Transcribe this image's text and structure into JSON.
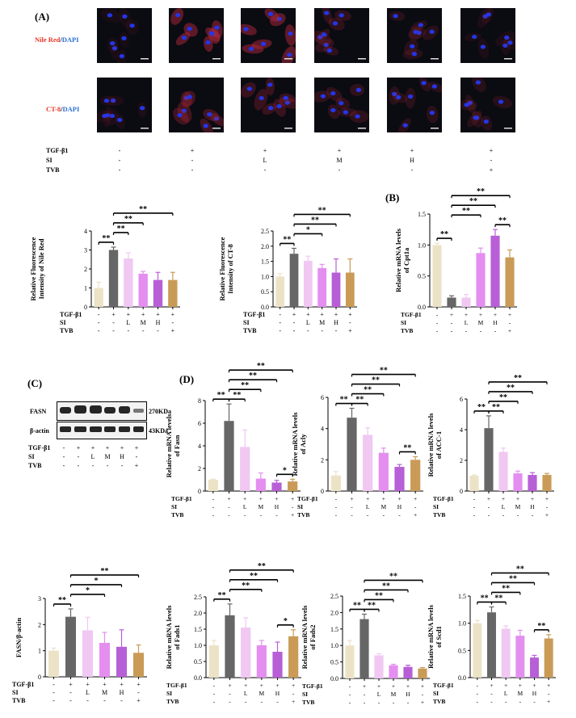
{
  "panels": {
    "A": "(A)",
    "B": "(B)",
    "C": "(C)",
    "D": "(D)"
  },
  "colors": {
    "ctrl": "#ece3c7",
    "tgf": "#666666",
    "L": "#f0c8f2",
    "M": "#e48ef0",
    "H": "#b75fd6",
    "TVB": "#c99b57",
    "nile": "#e8392a",
    "dapi": "#2b6fd6"
  },
  "microscopy": {
    "row1_label_a": "Nile Red",
    "row1_label_sep": "/",
    "row1_label_b": "DAPI",
    "row2_label_a": "CT-8",
    "row2_label_sep": "/",
    "row2_label_b": "DAPI"
  },
  "treatment_table": {
    "rows": [
      {
        "label": "TGF-β1",
        "values": [
          "-",
          "+",
          "+",
          "+",
          "+",
          "+"
        ]
      },
      {
        "label": "SI",
        "values": [
          "-",
          "-",
          "L",
          "M",
          "H",
          "-"
        ]
      },
      {
        "label": "TVB",
        "values": [
          "-",
          "-",
          "-",
          "-",
          "-",
          "+"
        ]
      }
    ]
  },
  "blot": {
    "labels": [
      "FASN",
      "β-actin"
    ],
    "sizes": [
      "270KDa",
      "43KDa"
    ]
  },
  "chart_data": [
    {
      "id": "nile",
      "type": "bar",
      "ylabel_l1": "Relative Fluorescence",
      "ylabel_l2": "Intensity of Nile Red",
      "ylim": [
        0,
        4
      ],
      "yticks": [
        "0",
        "1",
        "2",
        "3",
        "4"
      ],
      "values": [
        1.0,
        3.0,
        2.55,
        1.75,
        1.42,
        1.42
      ],
      "errors": [
        0.3,
        0.15,
        0.3,
        0.12,
        0.4,
        0.4
      ],
      "sig": [
        {
          "from": 0,
          "to": 1,
          "label": "**",
          "level": 1
        },
        {
          "from": 1,
          "to": 2,
          "label": "**",
          "level": 2
        },
        {
          "from": 1,
          "to": 3,
          "label": "**",
          "level": 3
        },
        {
          "from": 1,
          "to": 5,
          "label": "**",
          "level": 4
        }
      ]
    },
    {
      "id": "ct8",
      "type": "bar",
      "ylabel_l1": "Relative Fluorescence",
      "ylabel_l2": "Intensity of CT-8",
      "ylim": [
        0,
        2.5
      ],
      "yticks": [
        "0.0",
        "0.5",
        "1.0",
        "1.5",
        "2.0",
        "2.5"
      ],
      "values": [
        1.0,
        1.75,
        1.52,
        1.28,
        1.13,
        1.13
      ],
      "errors": [
        0.1,
        0.18,
        0.15,
        0.12,
        0.45,
        0.45
      ],
      "sig": [
        {
          "from": 0,
          "to": 1,
          "label": "**",
          "level": 1
        },
        {
          "from": 1,
          "to": 3,
          "label": "*",
          "level": 2
        },
        {
          "from": 1,
          "to": 4,
          "label": "**",
          "level": 3
        },
        {
          "from": 1,
          "to": 5,
          "label": "**",
          "level": 4
        }
      ]
    },
    {
      "id": "cpt1a",
      "type": "bar",
      "ylabel_l1": "Relative mRNA levels",
      "ylabel_l2": "of Cpt1a",
      "ylim": [
        0,
        1.5
      ],
      "yticks": [
        "0.0",
        "0.5",
        "1.0",
        "1.5"
      ],
      "values": [
        1.0,
        0.15,
        0.15,
        0.87,
        1.15,
        0.8
      ],
      "errors": [
        0.03,
        0.03,
        0.05,
        0.08,
        0.1,
        0.12
      ],
      "sig": [
        {
          "from": 0,
          "to": 1,
          "label": "**",
          "level": 1
        },
        {
          "from": 4,
          "to": 5,
          "label": "**",
          "level": 1
        },
        {
          "from": 1,
          "to": 3,
          "label": "**",
          "level": 2
        },
        {
          "from": 1,
          "to": 4,
          "label": "**",
          "level": 3
        },
        {
          "from": 1,
          "to": 5,
          "label": "**",
          "level": 4
        }
      ]
    },
    {
      "id": "fasn_blot",
      "type": "bar",
      "ylabel_l1": "",
      "ylabel_l2": "FASN/β-actin",
      "ylim": [
        0,
        3
      ],
      "yticks": [
        "0",
        "1",
        "2",
        "3"
      ],
      "values": [
        1.0,
        2.3,
        1.78,
        1.3,
        1.15,
        0.92
      ],
      "errors": [
        0.1,
        0.3,
        0.5,
        0.4,
        0.65,
        0.3
      ],
      "sig": [
        {
          "from": 0,
          "to": 1,
          "label": "**",
          "level": 1
        },
        {
          "from": 1,
          "to": 3,
          "label": "*",
          "level": 2
        },
        {
          "from": 1,
          "to": 4,
          "label": "*",
          "level": 3
        },
        {
          "from": 1,
          "to": 5,
          "label": "**",
          "level": 4
        }
      ]
    },
    {
      "id": "fasn",
      "type": "bar",
      "ylabel_l1": "Relative mRNA levels",
      "ylabel_l2": "of Fasn",
      "ylim": [
        0,
        8
      ],
      "yticks": [
        "0",
        "2",
        "4",
        "6",
        "8"
      ],
      "values": [
        1.0,
        6.2,
        3.9,
        1.1,
        0.75,
        0.85
      ],
      "errors": [
        0.05,
        1.5,
        1.5,
        0.5,
        0.2,
        0.2
      ],
      "sig": [
        {
          "from": 0,
          "to": 1,
          "label": "**",
          "level": 1
        },
        {
          "from": 1,
          "to": 2,
          "label": "**",
          "level": 1
        },
        {
          "from": 4,
          "to": 5,
          "label": "*",
          "level": 1
        },
        {
          "from": 1,
          "to": 3,
          "label": "**",
          "level": 2
        },
        {
          "from": 1,
          "to": 4,
          "label": "**",
          "level": 3
        },
        {
          "from": 1,
          "to": 5,
          "label": "**",
          "level": 4
        }
      ]
    },
    {
      "id": "acly",
      "type": "bar",
      "ylabel_l1": "Relative mRNA levels",
      "ylabel_l2": "of Acly",
      "ylim": [
        0,
        6
      ],
      "yticks": [
        "0",
        "2",
        "4",
        "6"
      ],
      "values": [
        1.0,
        4.7,
        3.6,
        2.45,
        1.55,
        2.0
      ],
      "errors": [
        0.25,
        0.6,
        0.45,
        0.3,
        0.15,
        0.2
      ],
      "sig": [
        {
          "from": 0,
          "to": 1,
          "label": "**",
          "level": 1
        },
        {
          "from": 1,
          "to": 2,
          "label": "**",
          "level": 1
        },
        {
          "from": 4,
          "to": 5,
          "label": "**",
          "level": 1
        },
        {
          "from": 1,
          "to": 3,
          "label": "**",
          "level": 2
        },
        {
          "from": 1,
          "to": 4,
          "label": "**",
          "level": 3
        },
        {
          "from": 1,
          "to": 5,
          "label": "**",
          "level": 4
        }
      ]
    },
    {
      "id": "acc1",
      "type": "bar",
      "ylabel_l1": "Relative mRNA levels",
      "ylabel_l2": "of ACC-1",
      "ylim": [
        0,
        6
      ],
      "yticks": [
        "0",
        "2",
        "4",
        "6"
      ],
      "values": [
        1.0,
        4.1,
        2.55,
        1.15,
        1.05,
        1.05
      ],
      "errors": [
        0.05,
        0.8,
        0.25,
        0.15,
        0.15,
        0.1
      ],
      "sig": [
        {
          "from": 0,
          "to": 1,
          "label": "**",
          "level": 1
        },
        {
          "from": 1,
          "to": 2,
          "label": "**",
          "level": 1
        },
        {
          "from": 1,
          "to": 3,
          "label": "**",
          "level": 2
        },
        {
          "from": 1,
          "to": 4,
          "label": "**",
          "level": 3
        },
        {
          "from": 1,
          "to": 5,
          "label": "**",
          "level": 4
        }
      ]
    },
    {
      "id": "fads1",
      "type": "bar",
      "ylabel_l1": "Relative mRNA levels",
      "ylabel_l2": "of Fads1",
      "ylim": [
        0,
        2.5
      ],
      "yticks": [
        "0.0",
        "0.5",
        "1.0",
        "1.5",
        "2.0",
        "2.5"
      ],
      "values": [
        1.0,
        1.93,
        1.55,
        1.0,
        0.8,
        1.28
      ],
      "errors": [
        0.15,
        0.35,
        0.3,
        0.15,
        0.3,
        0.2
      ],
      "sig": [
        {
          "from": 0,
          "to": 1,
          "label": "**",
          "level": 1
        },
        {
          "from": 4,
          "to": 5,
          "label": "*",
          "level": 1
        },
        {
          "from": 1,
          "to": 3,
          "label": "**",
          "level": 2
        },
        {
          "from": 1,
          "to": 4,
          "label": "**",
          "level": 3
        },
        {
          "from": 1,
          "to": 5,
          "label": "**",
          "level": 4
        }
      ]
    },
    {
      "id": "fads2",
      "type": "bar",
      "ylabel_l1": "Relative mRNA levels",
      "ylabel_l2": "of Fads2",
      "ylim": [
        0,
        2.5
      ],
      "yticks": [
        "0.0",
        "0.5",
        "1.0",
        "1.5",
        "2.0",
        "2.5"
      ],
      "values": [
        1.0,
        1.8,
        0.7,
        0.4,
        0.35,
        0.3
      ],
      "errors": [
        0.15,
        0.15,
        0.05,
        0.03,
        0.05,
        0.03
      ],
      "sig": [
        {
          "from": 0,
          "to": 1,
          "label": "**",
          "level": 1
        },
        {
          "from": 1,
          "to": 2,
          "label": "**",
          "level": 1
        },
        {
          "from": 1,
          "to": 3,
          "label": "**",
          "level": 2
        },
        {
          "from": 1,
          "to": 4,
          "label": "**",
          "level": 3
        },
        {
          "from": 1,
          "to": 5,
          "label": "**",
          "level": 4
        }
      ]
    },
    {
      "id": "scd1",
      "type": "bar",
      "ylabel_l1": "Relative mRNA levels",
      "ylabel_l2": "of Scd1",
      "ylim": [
        0,
        1.5
      ],
      "yticks": [
        "0.0",
        "0.5",
        "1.0",
        "1.5"
      ],
      "values": [
        1.0,
        1.2,
        0.9,
        0.77,
        0.37,
        0.72
      ],
      "errors": [
        0.05,
        0.1,
        0.05,
        0.1,
        0.04,
        0.07
      ],
      "sig": [
        {
          "from": 0,
          "to": 1,
          "label": "**",
          "level": 1
        },
        {
          "from": 1,
          "to": 2,
          "label": "**",
          "level": 1
        },
        {
          "from": 4,
          "to": 5,
          "label": "**",
          "level": 1
        },
        {
          "from": 1,
          "to": 3,
          "label": "**",
          "level": 2
        },
        {
          "from": 1,
          "to": 4,
          "label": "**",
          "level": 3
        },
        {
          "from": 1,
          "to": 5,
          "label": "**",
          "level": 4
        }
      ]
    }
  ]
}
